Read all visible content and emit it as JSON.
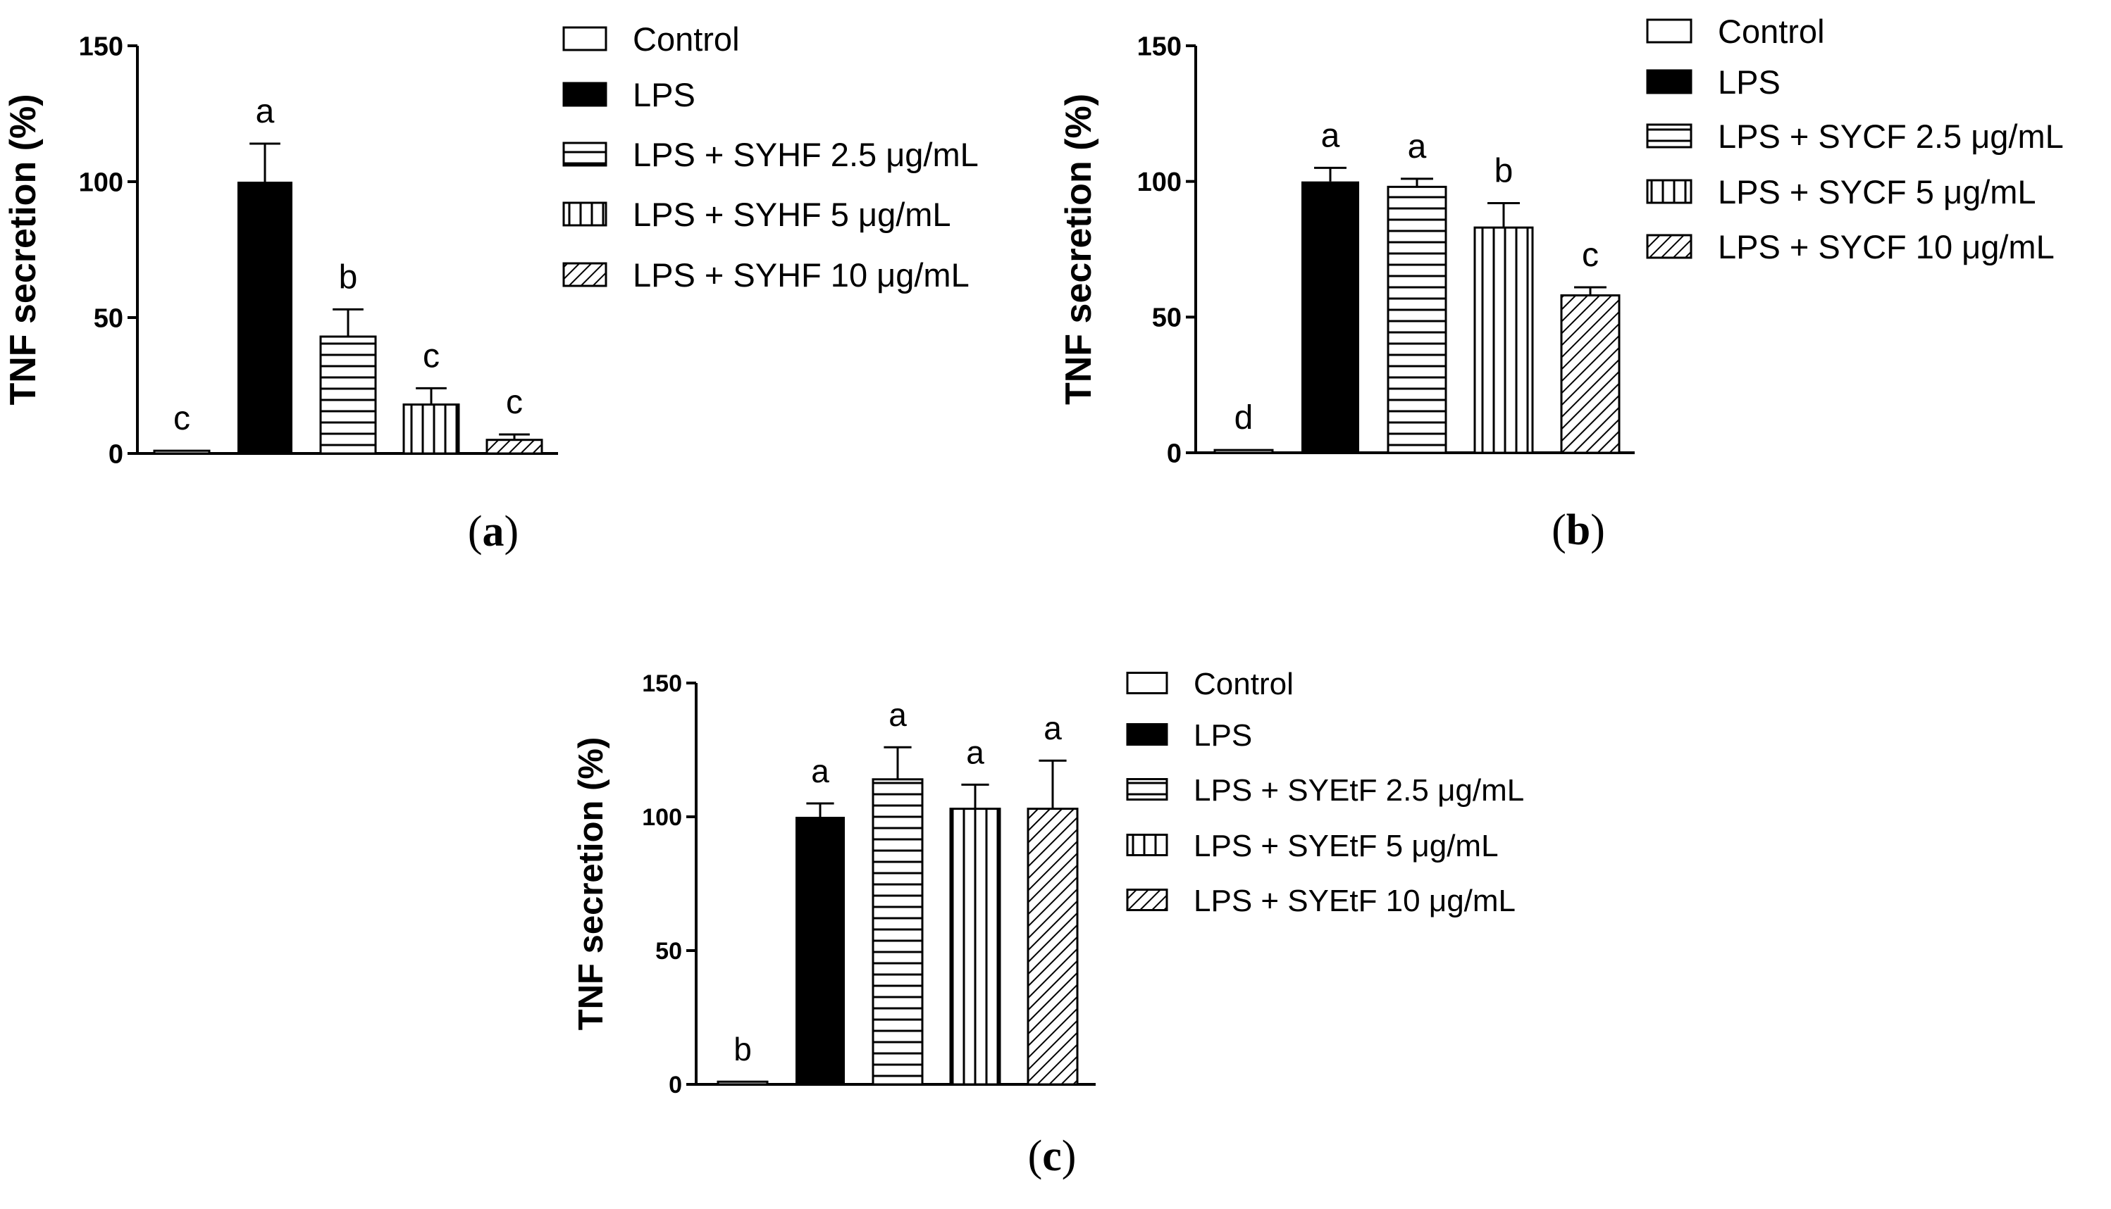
{
  "chart_data": [
    {
      "id": "a",
      "type": "bar",
      "panel_label": "a",
      "ylabel": "TNF secretion (%)",
      "ylim": [
        0,
        150
      ],
      "yticks": [
        0,
        50,
        100,
        150
      ],
      "legend_position": "right",
      "categories": [
        "Control",
        "LPS",
        "LPS + SYHF 2.5 μg/mL",
        "LPS + SYHF 5 μg/mL",
        "LPS + SYHF 10 μg/mL"
      ],
      "patterns": [
        "empty",
        "solid",
        "horizontal",
        "vertical",
        "diagonal"
      ],
      "values": [
        1,
        100,
        43,
        18,
        5
      ],
      "errors": [
        0,
        14,
        10,
        6,
        2
      ],
      "significance": [
        "c",
        "a",
        "b",
        "c",
        "c"
      ]
    },
    {
      "id": "b",
      "type": "bar",
      "panel_label": "b",
      "ylabel": "TNF secretion (%)",
      "ylim": [
        0,
        150
      ],
      "yticks": [
        0,
        50,
        100,
        150
      ],
      "legend_position": "right",
      "categories": [
        "Control",
        "LPS",
        "LPS + SYCF 2.5 μg/mL",
        "LPS + SYCF 5 μg/mL",
        "LPS + SYCF 10 μg/mL"
      ],
      "patterns": [
        "empty",
        "solid",
        "horizontal",
        "vertical",
        "diagonal"
      ],
      "values": [
        1,
        100,
        98,
        83,
        58
      ],
      "errors": [
        0,
        5,
        3,
        9,
        3
      ],
      "significance": [
        "d",
        "a",
        "a",
        "b",
        "c"
      ]
    },
    {
      "id": "c",
      "type": "bar",
      "panel_label": "c",
      "ylabel": "TNF secretion (%)",
      "ylim": [
        0,
        150
      ],
      "yticks": [
        0,
        50,
        100,
        150
      ],
      "legend_position": "right",
      "categories": [
        "Control",
        "LPS",
        "LPS + SYEtF 2.5 μg/mL",
        "LPS + SYEtF 5 μg/mL",
        "LPS + SYEtF 10 μg/mL"
      ],
      "patterns": [
        "empty",
        "solid",
        "horizontal",
        "vertical",
        "diagonal"
      ],
      "values": [
        1,
        100,
        114,
        103,
        103
      ],
      "errors": [
        0,
        5,
        12,
        9,
        18
      ],
      "significance": [
        "b",
        "a",
        "a",
        "a",
        "a"
      ]
    }
  ]
}
